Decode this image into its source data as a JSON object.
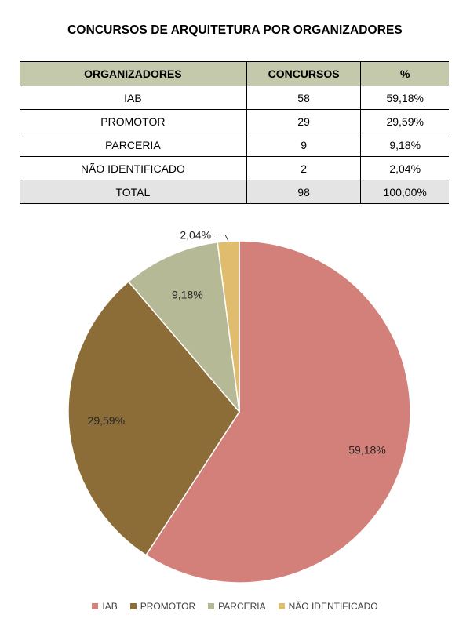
{
  "title": "CONCURSOS DE ARQUITETURA POR ORGANIZADORES",
  "table": {
    "headers": [
      "ORGANIZADORES",
      "CONCURSOS",
      "%"
    ],
    "rows": [
      [
        "IAB",
        "58",
        "59,18%"
      ],
      [
        "PROMOTOR",
        "29",
        "29,59%"
      ],
      [
        "PARCERIA",
        "9",
        "9,18%"
      ],
      [
        "NÃO IDENTIFICADO",
        "2",
        "2,04%"
      ]
    ],
    "total": [
      "TOTAL",
      "98",
      "100,00%"
    ]
  },
  "chart_data": {
    "type": "pie",
    "categories": [
      "IAB",
      "PROMOTOR",
      "PARCERIA",
      "NÃO IDENTIFICADO"
    ],
    "values": [
      59.18,
      29.59,
      9.18,
      2.04
    ],
    "labels": [
      "59,18%",
      "29,59%",
      "9,18%",
      "2,04%"
    ],
    "colors": [
      "#d4807a",
      "#8c6c37",
      "#b5b996",
      "#e0bd6e"
    ],
    "legend": "bottom"
  }
}
